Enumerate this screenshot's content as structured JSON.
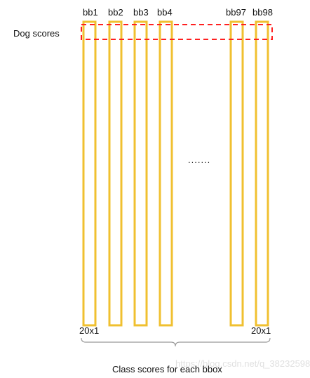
{
  "figure": {
    "row_label": "Dog scores",
    "ellipsis": ".......",
    "caption": "Class scores for each bbox",
    "watermark": "https://blog.csdn.net/q_38232598",
    "colors": {
      "bbox_column": "#f0c030",
      "highlight_row": "#ff2020"
    }
  },
  "columns": [
    {
      "label": "bb1",
      "dim": "20x1"
    },
    {
      "label": "bb2",
      "dim": ""
    },
    {
      "label": "bb3",
      "dim": ""
    },
    {
      "label": "bb4",
      "dim": ""
    },
    {
      "label": "bb97",
      "dim": ""
    },
    {
      "label": "bb98",
      "dim": "20x1"
    }
  ]
}
